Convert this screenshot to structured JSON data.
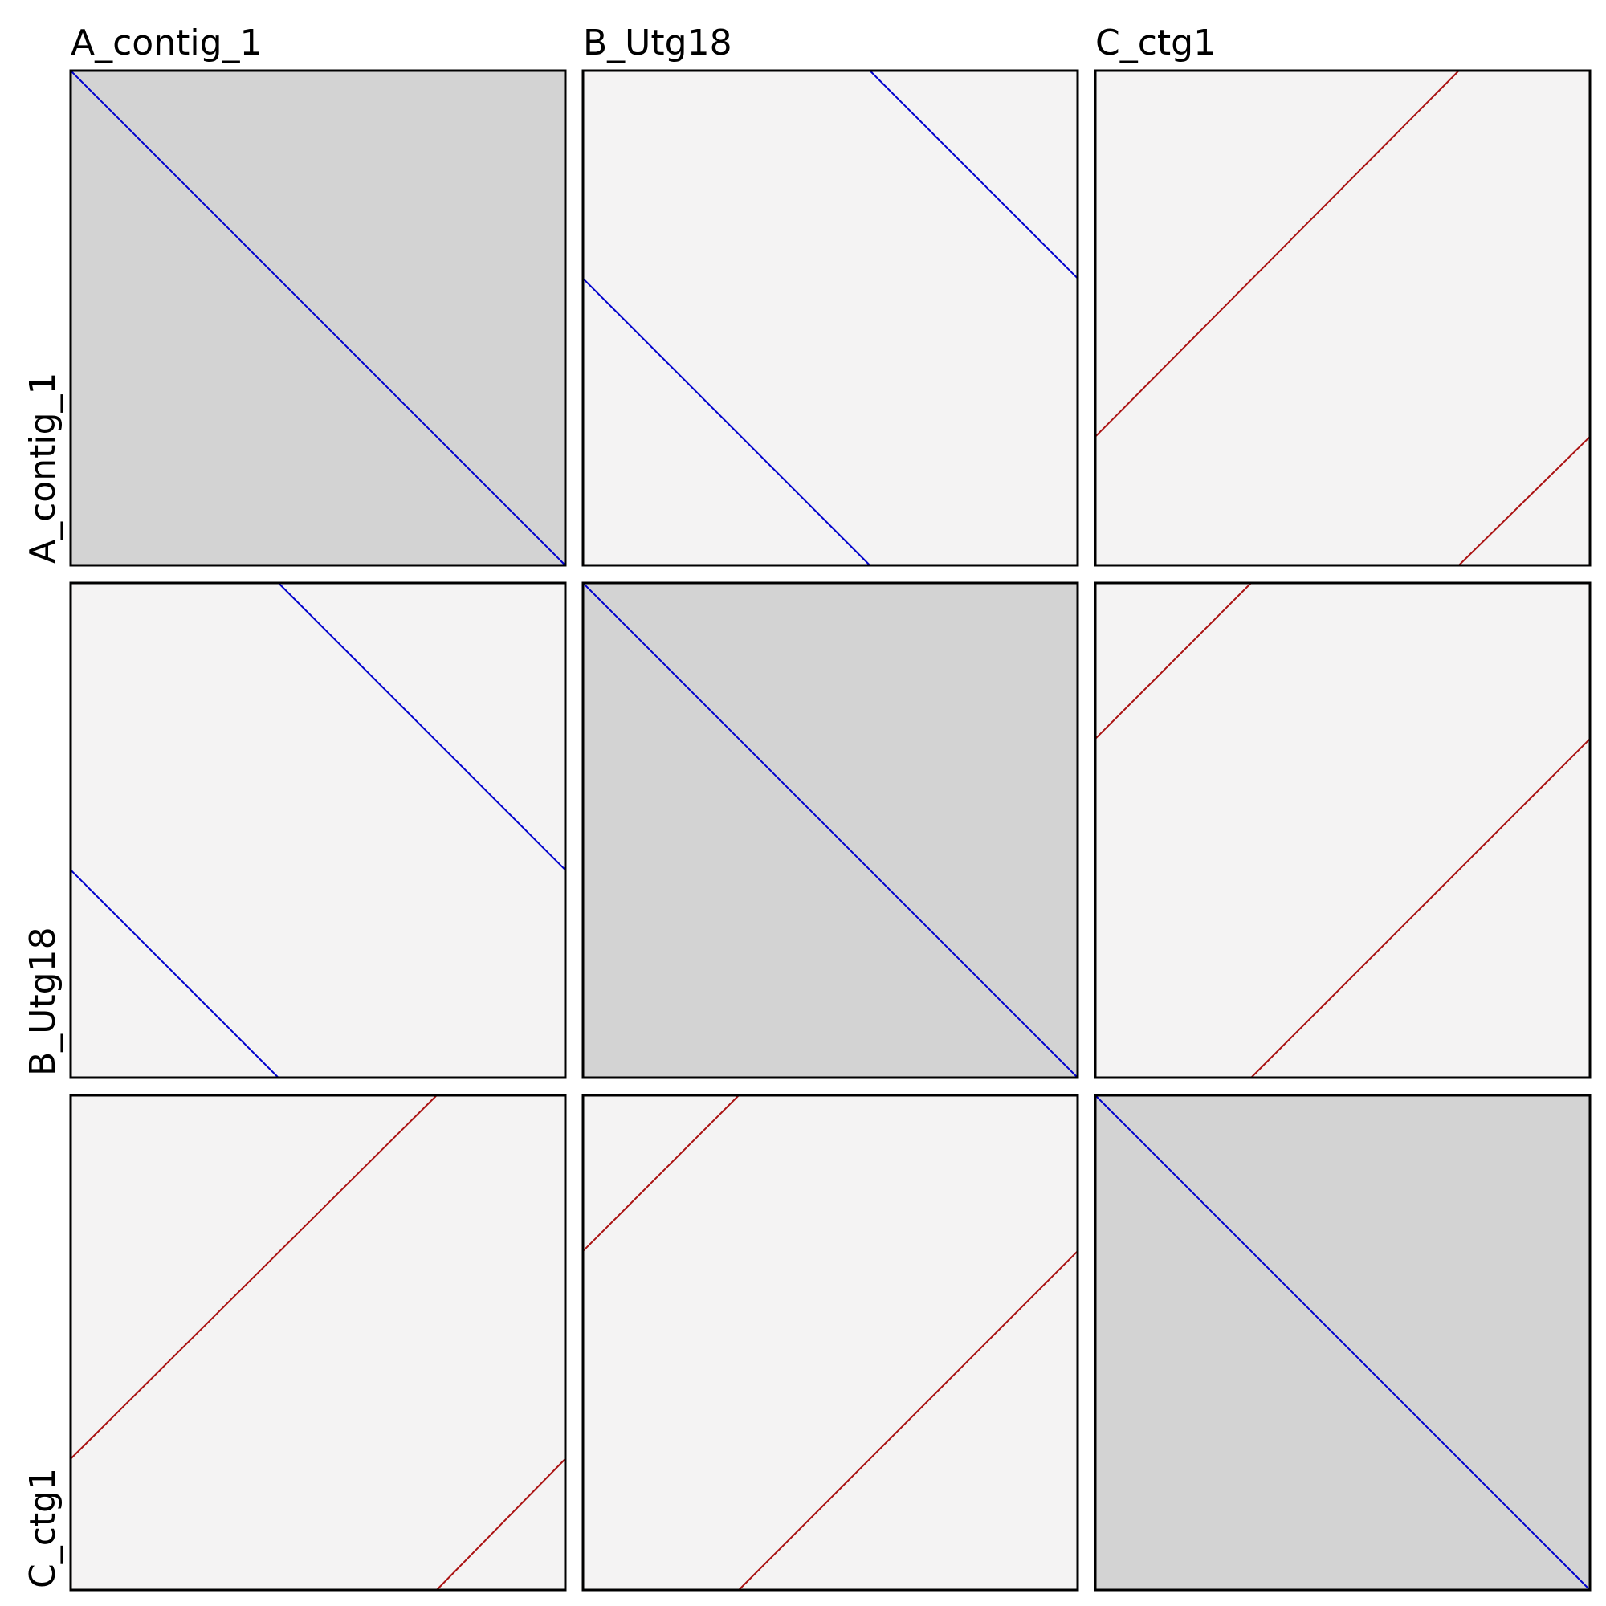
{
  "chart_data": {
    "type": "dotplot",
    "sequences": [
      "A_contig_1",
      "B_Utg18",
      "C_ctg1"
    ],
    "column_labels": [
      "A_contig_1",
      "B_Utg18",
      "C_ctg1"
    ],
    "row_labels": [
      "A_contig_1",
      "B_Utg18",
      "C_ctg1"
    ],
    "colors": {
      "self_background": "#d3d3d3",
      "pair_background": "#f4f3f3",
      "forward": "#0000cc",
      "reverse": "#aa1111",
      "frame": "#000000"
    },
    "panels": [
      {
        "row": 0,
        "col": 0,
        "self": true,
        "segments": [
          {
            "strand": "forward",
            "x": [
              0,
              1
            ],
            "y": [
              0,
              1
            ]
          }
        ]
      },
      {
        "row": 0,
        "col": 1,
        "self": false,
        "segments": [
          {
            "strand": "forward",
            "x": [
              0,
              0.58
            ],
            "y": [
              0.42,
              1
            ]
          },
          {
            "strand": "forward",
            "x": [
              0.58,
              1
            ],
            "y": [
              0,
              0.42
            ]
          }
        ]
      },
      {
        "row": 0,
        "col": 2,
        "self": false,
        "segments": [
          {
            "strand": "reverse",
            "x": [
              0,
              0.735
            ],
            "y": [
              0.74,
              0
            ]
          },
          {
            "strand": "reverse",
            "x": [
              0.735,
              1
            ],
            "y": [
              1,
              0.74
            ]
          }
        ]
      },
      {
        "row": 1,
        "col": 0,
        "self": false,
        "segments": [
          {
            "strand": "forward",
            "x": [
              0,
              0.42
            ],
            "y": [
              0.58,
              1
            ]
          },
          {
            "strand": "forward",
            "x": [
              0.42,
              1
            ],
            "y": [
              0,
              0.58
            ]
          }
        ]
      },
      {
        "row": 1,
        "col": 1,
        "self": true,
        "segments": [
          {
            "strand": "forward",
            "x": [
              0,
              1
            ],
            "y": [
              0,
              1
            ]
          }
        ]
      },
      {
        "row": 1,
        "col": 2,
        "self": false,
        "segments": [
          {
            "strand": "reverse",
            "x": [
              0,
              0.315
            ],
            "y": [
              0.315,
              0
            ]
          },
          {
            "strand": "reverse",
            "x": [
              0.315,
              1
            ],
            "y": [
              1,
              0.315
            ]
          }
        ]
      },
      {
        "row": 2,
        "col": 0,
        "self": false,
        "segments": [
          {
            "strand": "reverse",
            "x": [
              0,
              0.74
            ],
            "y": [
              0.735,
              0
            ]
          },
          {
            "strand": "reverse",
            "x": [
              0.74,
              1
            ],
            "y": [
              1,
              0.735
            ]
          }
        ]
      },
      {
        "row": 2,
        "col": 1,
        "self": false,
        "segments": [
          {
            "strand": "reverse",
            "x": [
              0,
              0.315
            ],
            "y": [
              0.315,
              0
            ]
          },
          {
            "strand": "reverse",
            "x": [
              0.315,
              1
            ],
            "y": [
              1,
              0.315
            ]
          }
        ]
      },
      {
        "row": 2,
        "col": 2,
        "self": true,
        "segments": [
          {
            "strand": "forward",
            "x": [
              0,
              1
            ],
            "y": [
              0,
              1
            ]
          }
        ]
      }
    ]
  }
}
